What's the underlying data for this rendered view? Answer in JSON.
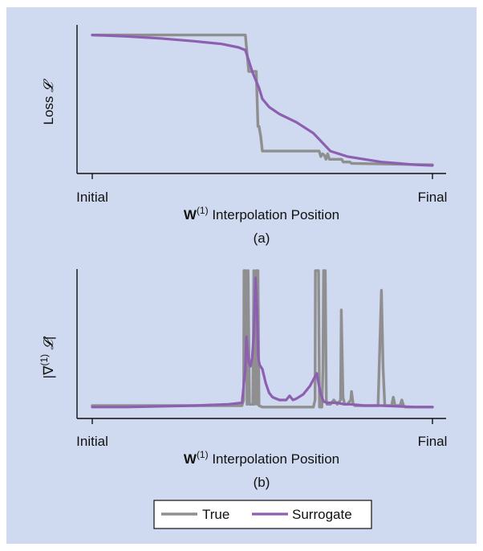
{
  "colors": {
    "background": "#cfd9ef",
    "true": "#8f8f8f",
    "surrogate": "#8d5fb0",
    "axis": "#111111"
  },
  "legend": {
    "entries": [
      "True",
      "Surrogate"
    ],
    "placement": "bottom-center"
  },
  "chart_data": [
    {
      "type": "line",
      "panel": "(a)",
      "ylabel": "Loss 𝓛",
      "xlabel": {
        "bold": "W",
        "sup": "(1)",
        "rest": "Interpolation Position"
      },
      "xticks": [
        "Initial",
        "Final"
      ],
      "xlim": [
        0,
        1
      ],
      "ylim": [
        0,
        1
      ],
      "grid": false,
      "series": [
        {
          "name": "True",
          "x": [
            0,
            0.45,
            0.451,
            0.46,
            0.482,
            0.487,
            0.49,
            0.495,
            0.5,
            0.667,
            0.672,
            0.677,
            0.682,
            0.687,
            0.692,
            0.697,
            0.733,
            0.738,
            0.757,
            0.762,
            1.0
          ],
          "y": [
            0.985,
            0.985,
            0.96,
            0.72,
            0.72,
            0.32,
            0.32,
            0.25,
            0.14,
            0.14,
            0.1,
            0.12,
            0.11,
            0.08,
            0.12,
            0.08,
            0.08,
            0.06,
            0.06,
            0.05,
            0.04
          ]
        },
        {
          "name": "Surrogate",
          "x": [
            0,
            0.1,
            0.2,
            0.3,
            0.38,
            0.43,
            0.45,
            0.46,
            0.47,
            0.48,
            0.49,
            0.5,
            0.52,
            0.55,
            0.6,
            0.65,
            0.7,
            0.75,
            0.8,
            0.85,
            0.9,
            0.95,
            1.0
          ],
          "y": [
            0.985,
            0.975,
            0.96,
            0.94,
            0.92,
            0.895,
            0.875,
            0.8,
            0.72,
            0.66,
            0.6,
            0.52,
            0.46,
            0.41,
            0.35,
            0.27,
            0.14,
            0.1,
            0.08,
            0.06,
            0.05,
            0.04,
            0.035
          ]
        }
      ]
    },
    {
      "type": "line",
      "panel": "(b)",
      "ylabel": "|∇(1) 𝓛|",
      "xlabel": {
        "bold": "W",
        "sup": "(1)",
        "rest": "Interpolation Position"
      },
      "xticks": [
        "Initial",
        "Final"
      ],
      "xlim": [
        0,
        1
      ],
      "ylim": [
        0,
        1
      ],
      "grid": false,
      "series": [
        {
          "name": "True",
          "x": [
            0,
            0.44,
            0.445,
            0.446,
            0.452,
            0.455,
            0.458,
            0.462,
            0.472,
            0.475,
            0.476,
            0.482,
            0.484,
            0.485,
            0.487,
            0.49,
            0.5,
            0.65,
            0.655,
            0.656,
            0.665,
            0.668,
            0.675,
            0.678,
            0.68,
            0.681,
            0.685,
            0.688,
            0.69,
            0.7,
            0.71,
            0.72,
            0.73,
            0.732,
            0.737,
            0.742,
            0.75,
            0.76,
            0.762,
            0.767,
            0.772,
            0.79,
            0.84,
            0.845,
            0.85,
            0.855,
            0.86,
            0.88,
            0.885,
            0.89,
            0.905,
            0.91,
            0.915,
            0.92,
            1.0
          ],
          "y": [
            0.04,
            0.04,
            0.08,
            1.0,
            1.0,
            0.05,
            1.0,
            0.05,
            0.05,
            1.0,
            0.05,
            1.0,
            0.05,
            1.0,
            1.0,
            0.04,
            0.03,
            0.03,
            0.08,
            1.0,
            1.0,
            0.03,
            0.03,
            0.3,
            1.0,
            1.0,
            1.0,
            0.08,
            0.05,
            0.05,
            0.08,
            0.05,
            0.08,
            0.72,
            0.1,
            0.05,
            0.05,
            0.08,
            0.14,
            0.05,
            0.04,
            0.04,
            0.04,
            0.45,
            0.86,
            0.3,
            0.04,
            0.04,
            0.1,
            0.04,
            0.04,
            0.08,
            0.04,
            0.03,
            0.03
          ]
        },
        {
          "name": "Surrogate",
          "x": [
            0,
            0.1,
            0.2,
            0.3,
            0.4,
            0.44,
            0.45,
            0.453,
            0.456,
            0.46,
            0.465,
            0.47,
            0.475,
            0.48,
            0.484,
            0.488,
            0.492,
            0.5,
            0.51,
            0.52,
            0.53,
            0.55,
            0.57,
            0.58,
            0.59,
            0.6,
            0.62,
            0.64,
            0.66,
            0.66,
            0.665,
            0.672,
            0.68,
            0.69,
            0.7,
            0.72,
            0.74,
            0.76,
            0.8,
            0.85,
            0.9,
            0.95,
            1.0
          ],
          "y": [
            0.03,
            0.03,
            0.035,
            0.04,
            0.05,
            0.06,
            0.3,
            0.53,
            0.45,
            0.35,
            0.32,
            0.38,
            0.55,
            0.95,
            0.75,
            0.38,
            0.33,
            0.3,
            0.2,
            0.13,
            0.1,
            0.08,
            0.08,
            0.11,
            0.08,
            0.09,
            0.12,
            0.18,
            0.27,
            0.27,
            0.2,
            0.12,
            0.07,
            0.06,
            0.06,
            0.06,
            0.05,
            0.05,
            0.04,
            0.04,
            0.035,
            0.03,
            0.03
          ]
        }
      ]
    }
  ]
}
